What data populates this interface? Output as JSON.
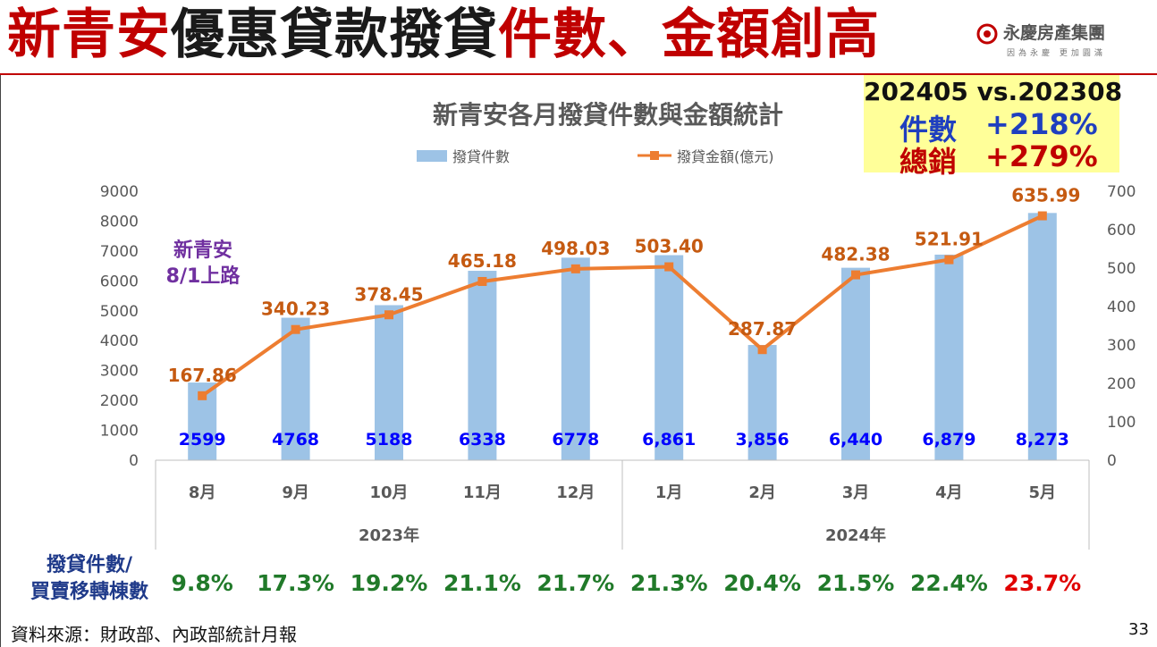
{
  "header": {
    "title_part1": "新青安",
    "title_part2": "優惠貸款撥貸",
    "title_part3": "件數、",
    "title_part4": "金額創高",
    "logo_name": "永慶房產集團",
    "logo_slogan": "因為永慶 更加圓滿"
  },
  "callout": {
    "heading": "202405 vs.202308",
    "row1_label": "件數",
    "row1_value": "+218%",
    "row2_label": "總銷",
    "row2_value": "+279%"
  },
  "annotation": {
    "line1": "新青安",
    "line2": "8/1上路"
  },
  "chart_data": {
    "type": "bar",
    "title": "新青安各月撥貸件數與金額統計",
    "categories": [
      "8月",
      "9月",
      "10月",
      "11月",
      "12月",
      "1月",
      "2月",
      "3月",
      "4月",
      "5月"
    ],
    "year_groups": [
      {
        "label": "2023年",
        "count": 5
      },
      {
        "label": "2024年",
        "count": 5
      }
    ],
    "series": [
      {
        "name": "撥貸件數",
        "kind": "bar",
        "axis": "left",
        "values": [
          2599,
          4768,
          5188,
          6338,
          6778,
          6861,
          3856,
          6440,
          6879,
          8273
        ],
        "labels": [
          "2599",
          "4768",
          "5188",
          "6338",
          "6778",
          "6,861",
          "3,856",
          "6,440",
          "6,879",
          "8,273"
        ]
      },
      {
        "name": "撥貸金額(億元)",
        "kind": "line",
        "axis": "right",
        "values": [
          167.86,
          340.23,
          378.45,
          465.18,
          498.03,
          503.4,
          287.87,
          482.38,
          521.91,
          635.99
        ],
        "labels": [
          "167.86",
          "340.23",
          "378.45",
          "465.18",
          "498.03",
          "503.40",
          "287.87",
          "482.38",
          "521.91",
          "635.99"
        ]
      }
    ],
    "y_left": {
      "min": 0,
      "max": 9000,
      "ticks": [
        "0",
        "1000",
        "2000",
        "3000",
        "4000",
        "5000",
        "6000",
        "7000",
        "8000",
        "9000"
      ]
    },
    "y_right": {
      "min": 0,
      "max": 700,
      "ticks": [
        "0",
        "100",
        "200",
        "300",
        "400",
        "500",
        "600",
        "700"
      ]
    },
    "legend_position": "top",
    "grid": false,
    "colors": {
      "bar": "#9dc3e6",
      "line": "#ed7d31",
      "bar_label": "#0000ff",
      "line_label": "#c55a11"
    }
  },
  "ratio": {
    "label_line1": "撥貸件數/",
    "label_line2": "買賣移轉棟數",
    "values": [
      "9.8%",
      "17.3%",
      "19.2%",
      "21.1%",
      "21.7%",
      "21.3%",
      "20.4%",
      "21.5%",
      "22.4%",
      "23.7%"
    ],
    "highlight_index": 9,
    "color": "#217a2a",
    "highlight_color": "#e00000"
  },
  "footer": {
    "source": "資料來源：財政部、內政部統計月報",
    "page": "33"
  }
}
